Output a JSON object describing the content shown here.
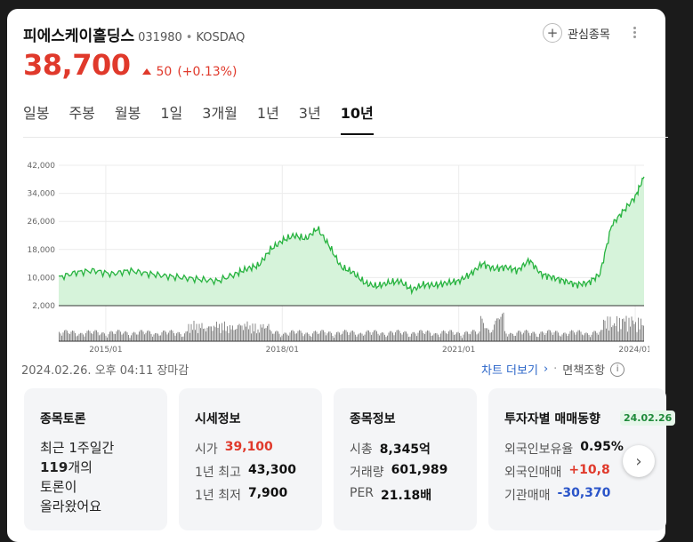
{
  "header": {
    "name": "피에스케이홀딩스",
    "code": "031980",
    "separator": "•",
    "market": "KOSDAQ",
    "watch_label": "관심종목"
  },
  "price": {
    "current": "38,700",
    "change": "50",
    "change_pct": "(+0.13%)",
    "color": "#e0392b"
  },
  "tabs": [
    "일봉",
    "주봉",
    "월봉",
    "1일",
    "3개월",
    "1년",
    "3년",
    "10년"
  ],
  "active_tab": "10년",
  "chart_data": {
    "type": "area",
    "y_ticks": [
      "42,000",
      "34,000",
      "26,000",
      "18,000",
      "10,000",
      "2,000"
    ],
    "x_ticks": [
      "2015/01",
      "2018/01",
      "2021/01",
      "2024/01"
    ],
    "ylim": [
      2000,
      42000
    ],
    "x": [
      2014.2,
      2014.5,
      2014.8,
      2015.1,
      2015.4,
      2015.7,
      2016.0,
      2016.3,
      2016.6,
      2016.9,
      2017.2,
      2017.4,
      2017.6,
      2017.8,
      2018.0,
      2018.2,
      2018.4,
      2018.6,
      2018.8,
      2019.0,
      2019.2,
      2019.4,
      2019.6,
      2019.8,
      2020.0,
      2020.2,
      2020.4,
      2020.6,
      2020.8,
      2021.0,
      2021.2,
      2021.4,
      2021.6,
      2021.8,
      2022.0,
      2022.2,
      2022.4,
      2022.6,
      2022.8,
      2023.0,
      2023.2,
      2023.4,
      2023.6,
      2023.8,
      2024.0,
      2024.15
    ],
    "y": [
      10000,
      11500,
      12000,
      11000,
      12000,
      11200,
      10500,
      10000,
      9500,
      9000,
      11000,
      12500,
      13500,
      18000,
      20500,
      22000,
      21000,
      24000,
      19000,
      13000,
      11500,
      8500,
      7500,
      8500,
      9000,
      6500,
      8000,
      7800,
      8500,
      9000,
      11000,
      14000,
      12500,
      13000,
      12000,
      15000,
      11000,
      10000,
      9000,
      8000,
      8500,
      11000,
      25000,
      29000,
      33000,
      38700
    ],
    "volume_color": "#8a8a8a",
    "line_color": "#27b33f",
    "fill_color": "#d6f3da"
  },
  "timestamp": "2024.02.26. 오후 04:11 장마감",
  "chart_more": "차트 더보기",
  "disclaimer": "면책조항",
  "panels": {
    "discussion": {
      "title": "종목토론",
      "line1": "최근 1주일간",
      "count": "119",
      "line2_suffix": "개의",
      "line3": "토론이",
      "line4": "올라왔어요"
    },
    "market": {
      "title": "시세정보",
      "rows": [
        {
          "k": "시가",
          "v": "39,100",
          "color": "red"
        },
        {
          "k": "1년 최고",
          "v": "43,300",
          "color": ""
        },
        {
          "k": "1년 최저",
          "v": "7,900",
          "color": ""
        }
      ]
    },
    "stock": {
      "title": "종목정보",
      "rows": [
        {
          "k": "시총",
          "v": "8,345억"
        },
        {
          "k": "거래량",
          "v": "601,989"
        },
        {
          "k": "PER",
          "v": "21.18배"
        }
      ]
    },
    "investor": {
      "title": "투자자별 매매동향",
      "date": "24.02.26",
      "rows": [
        {
          "k": "외국인보유율",
          "v": "0.95%",
          "color": ""
        },
        {
          "k": "외국인매매",
          "v": "+10,8",
          "color": "red"
        },
        {
          "k": "기관매매",
          "v": "-30,370",
          "color": "blue"
        }
      ]
    }
  }
}
